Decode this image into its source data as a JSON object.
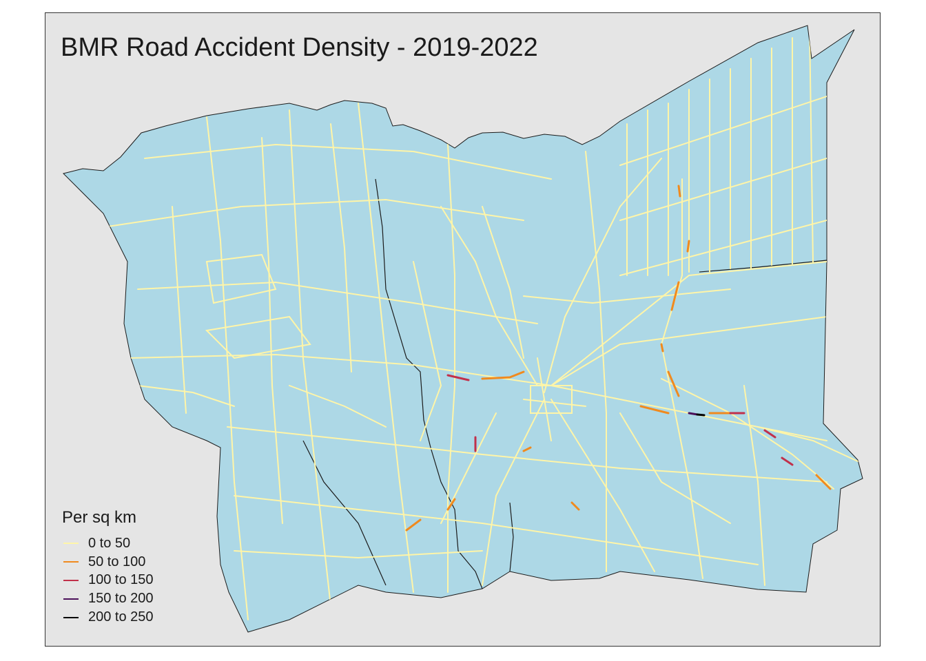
{
  "map": {
    "title": "BMR Road Accident Density - 2019-2022",
    "legend": {
      "title": "Per sq km",
      "items": [
        {
          "label": "0 to 50",
          "color": "#fff5a8"
        },
        {
          "label": "50 to 100",
          "color": "#f08a1e"
        },
        {
          "label": "100 to 150",
          "color": "#c1304a"
        },
        {
          "label": "150 to 200",
          "color": "#4b1059"
        },
        {
          "label": "200 to 250",
          "color": "#000000"
        }
      ]
    },
    "colors": {
      "panel_background": "#e5e5e5",
      "land_fill": "#add8e6",
      "district_border": "#1a1a1a",
      "road_low_density": "#fff5a8"
    }
  }
}
